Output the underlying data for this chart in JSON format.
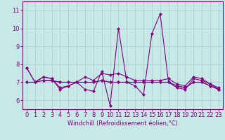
{
  "xlabel": "Windchill (Refroidissement éolien,°C)",
  "background_color": "#c8e8e8",
  "line_color": "#800080",
  "x": [
    0,
    1,
    2,
    3,
    4,
    5,
    6,
    7,
    8,
    9,
    10,
    11,
    12,
    13,
    14,
    15,
    16,
    17,
    18,
    19,
    20,
    21,
    22,
    23
  ],
  "series": [
    [
      7.8,
      7.0,
      7.3,
      7.2,
      6.6,
      6.8,
      7.0,
      6.6,
      6.5,
      7.6,
      5.7,
      10.0,
      7.0,
      6.8,
      6.3,
      9.7,
      10.8,
      7.0,
      6.7,
      6.6,
      7.2,
      7.1,
      6.9,
      6.6
    ],
    [
      7.8,
      7.0,
      7.3,
      7.2,
      6.7,
      6.8,
      7.0,
      7.3,
      7.1,
      7.5,
      7.4,
      7.5,
      7.3,
      7.1,
      7.1,
      7.1,
      7.1,
      7.2,
      6.9,
      6.8,
      7.3,
      7.2,
      6.9,
      6.7
    ],
    [
      7.0,
      7.0,
      7.1,
      7.1,
      7.0,
      7.0,
      7.0,
      7.0,
      7.0,
      7.1,
      7.0,
      7.0,
      7.0,
      7.0,
      7.0,
      7.0,
      7.0,
      7.0,
      6.8,
      6.7,
      7.0,
      7.0,
      6.8,
      6.6
    ],
    [
      7.0,
      7.0,
      7.1,
      7.1,
      7.0,
      7.0,
      7.0,
      7.0,
      7.0,
      7.1,
      7.0,
      7.0,
      7.0,
      7.0,
      7.0,
      7.0,
      7.0,
      7.0,
      6.8,
      6.7,
      7.0,
      7.0,
      6.8,
      6.6
    ]
  ],
  "ylim": [
    5.5,
    11.5
  ],
  "yticks": [
    6,
    7,
    8,
    9,
    10,
    11
  ],
  "xticks": [
    0,
    1,
    2,
    3,
    4,
    5,
    6,
    7,
    8,
    9,
    10,
    11,
    12,
    13,
    14,
    15,
    16,
    17,
    18,
    19,
    20,
    21,
    22,
    23
  ],
  "grid_color": "#9ecece",
  "marker": "D",
  "marker_size": 2,
  "line_width": 0.8,
  "tick_fontsize": 6,
  "xlabel_fontsize": 6
}
